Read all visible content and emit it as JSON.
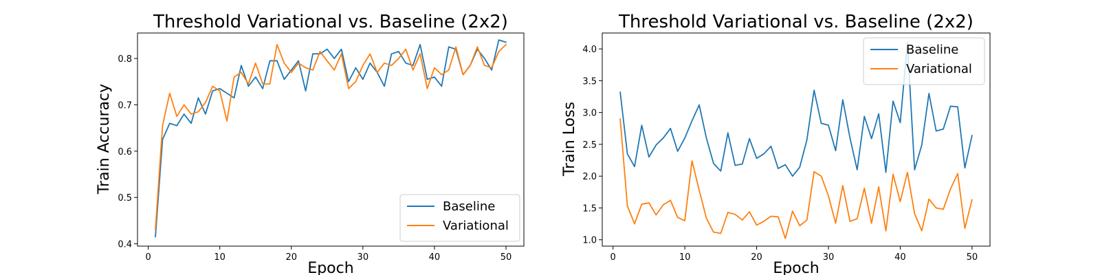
{
  "colors": {
    "baseline": "#1f77b4",
    "variational": "#ff7f0e",
    "frame": "#000000",
    "background": "#ffffff"
  },
  "chart_data": [
    {
      "type": "line",
      "title": "Threshold Variational vs. Baseline (2x2)",
      "xlabel": "Epoch",
      "ylabel": "Train Accuracy",
      "xlim": [
        -1.5,
        52.5
      ],
      "ylim": [
        0.395,
        0.855
      ],
      "xticks": [
        0,
        10,
        20,
        30,
        40,
        50
      ],
      "yticks": [
        0.4,
        0.5,
        0.6,
        0.7,
        0.8
      ],
      "grid": false,
      "legend_position": "bottom-right",
      "series": [
        {
          "name": "Baseline",
          "color": "#1f77b4",
          "x": [
            1,
            2,
            3,
            4,
            5,
            6,
            7,
            8,
            9,
            10,
            11,
            12,
            13,
            14,
            15,
            16,
            17,
            18,
            19,
            20,
            21,
            22,
            23,
            24,
            25,
            26,
            27,
            28,
            29,
            30,
            31,
            32,
            33,
            34,
            35,
            36,
            37,
            38,
            39,
            40,
            41,
            42,
            43,
            44,
            45,
            46,
            47,
            48,
            49,
            50
          ],
          "y": [
            0.415,
            0.625,
            0.66,
            0.655,
            0.68,
            0.66,
            0.715,
            0.68,
            0.73,
            0.735,
            0.725,
            0.715,
            0.785,
            0.74,
            0.76,
            0.735,
            0.795,
            0.795,
            0.755,
            0.775,
            0.795,
            0.73,
            0.81,
            0.81,
            0.82,
            0.8,
            0.82,
            0.75,
            0.78,
            0.755,
            0.79,
            0.77,
            0.74,
            0.81,
            0.815,
            0.79,
            0.785,
            0.83,
            0.755,
            0.76,
            0.74,
            0.825,
            0.82,
            0.765,
            0.785,
            0.82,
            0.8,
            0.775,
            0.84,
            0.835
          ]
        },
        {
          "name": "Variational",
          "color": "#ff7f0e",
          "x": [
            1,
            2,
            3,
            4,
            5,
            6,
            7,
            8,
            9,
            10,
            11,
            12,
            13,
            14,
            15,
            16,
            17,
            18,
            19,
            20,
            21,
            22,
            23,
            24,
            25,
            26,
            27,
            28,
            29,
            30,
            31,
            32,
            33,
            34,
            35,
            36,
            37,
            38,
            39,
            40,
            41,
            42,
            43,
            44,
            45,
            46,
            47,
            48,
            49,
            50
          ],
          "y": [
            0.43,
            0.655,
            0.725,
            0.675,
            0.7,
            0.68,
            0.685,
            0.705,
            0.74,
            0.73,
            0.665,
            0.76,
            0.77,
            0.745,
            0.79,
            0.745,
            0.745,
            0.83,
            0.79,
            0.77,
            0.79,
            0.78,
            0.775,
            0.815,
            0.795,
            0.775,
            0.81,
            0.735,
            0.75,
            0.785,
            0.81,
            0.77,
            0.79,
            0.785,
            0.8,
            0.82,
            0.775,
            0.81,
            0.735,
            0.78,
            0.765,
            0.775,
            0.825,
            0.765,
            0.785,
            0.825,
            0.785,
            0.78,
            0.815,
            0.83
          ]
        }
      ]
    },
    {
      "type": "line",
      "title": "Threshold Variational vs. Baseline (2x2)",
      "xlabel": "Epoch",
      "ylabel": "Train Loss",
      "xlim": [
        -1.5,
        52.5
      ],
      "ylim": [
        0.9,
        4.25
      ],
      "xticks": [
        0,
        10,
        20,
        30,
        40,
        50
      ],
      "yticks": [
        1.0,
        1.5,
        2.0,
        2.5,
        3.0,
        3.5,
        4.0
      ],
      "grid": false,
      "legend_position": "top-right",
      "series": [
        {
          "name": "Baseline",
          "color": "#1f77b4",
          "x": [
            1,
            2,
            3,
            4,
            5,
            6,
            7,
            8,
            9,
            10,
            11,
            12,
            13,
            14,
            15,
            16,
            17,
            18,
            19,
            20,
            21,
            22,
            23,
            24,
            25,
            26,
            27,
            28,
            29,
            30,
            31,
            32,
            33,
            34,
            35,
            36,
            37,
            38,
            39,
            40,
            41,
            42,
            43,
            44,
            45,
            46,
            47,
            48,
            49,
            50
          ],
          "y": [
            3.32,
            2.35,
            2.15,
            2.8,
            2.3,
            2.49,
            2.6,
            2.75,
            2.39,
            2.6,
            2.87,
            3.12,
            2.6,
            2.2,
            2.08,
            2.68,
            2.17,
            2.19,
            2.59,
            2.28,
            2.35,
            2.47,
            2.12,
            2.18,
            2.0,
            2.14,
            2.57,
            3.35,
            2.83,
            2.8,
            2.4,
            3.2,
            2.6,
            2.1,
            2.94,
            2.59,
            2.98,
            2.06,
            3.18,
            2.84,
            4.1,
            2.1,
            2.49,
            3.3,
            2.71,
            2.74,
            3.1,
            3.09,
            2.13,
            2.64
          ]
        },
        {
          "name": "Variational",
          "color": "#ff7f0e",
          "x": [
            1,
            2,
            3,
            4,
            5,
            6,
            7,
            8,
            9,
            10,
            11,
            12,
            13,
            14,
            15,
            16,
            17,
            18,
            19,
            20,
            21,
            22,
            23,
            24,
            25,
            26,
            27,
            28,
            29,
            30,
            31,
            32,
            33,
            34,
            35,
            36,
            37,
            38,
            39,
            40,
            41,
            42,
            43,
            44,
            45,
            46,
            47,
            48,
            49,
            50
          ],
          "y": [
            2.9,
            1.53,
            1.25,
            1.56,
            1.58,
            1.39,
            1.55,
            1.62,
            1.35,
            1.3,
            2.24,
            1.78,
            1.34,
            1.12,
            1.1,
            1.43,
            1.4,
            1.31,
            1.44,
            1.23,
            1.29,
            1.37,
            1.36,
            1.02,
            1.45,
            1.22,
            1.31,
            2.07,
            2.0,
            1.69,
            1.26,
            1.85,
            1.29,
            1.33,
            1.81,
            1.26,
            1.83,
            1.14,
            2.03,
            1.6,
            2.06,
            1.41,
            1.14,
            1.64,
            1.5,
            1.48,
            1.8,
            2.04,
            1.18,
            1.63
          ]
        }
      ]
    }
  ]
}
